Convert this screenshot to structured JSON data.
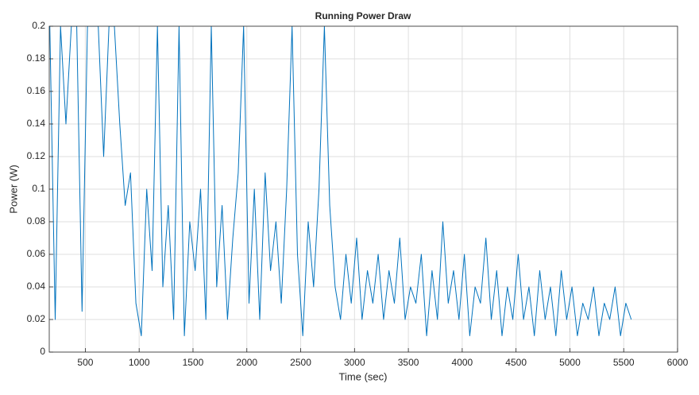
{
  "chart_data": {
    "type": "line",
    "title": "Running Power Draw",
    "x_label": "Time (sec)",
    "y_label": "Power (W)",
    "x": [
      170,
      220,
      270,
      320,
      370,
      420,
      470,
      520,
      570,
      620,
      670,
      720,
      770,
      820,
      870,
      920,
      970,
      1020,
      1070,
      1120,
      1170,
      1220,
      1270,
      1320,
      1370,
      1420,
      1470,
      1520,
      1570,
      1620,
      1670,
      1720,
      1770,
      1820,
      1870,
      1920,
      1970,
      2020,
      2070,
      2120,
      2170,
      2220,
      2270,
      2320,
      2370,
      2420,
      2470,
      2520,
      2570,
      2620,
      2670,
      2720,
      2770,
      2820,
      2870,
      2920,
      2970,
      3020,
      3070,
      3120,
      3170,
      3220,
      3270,
      3320,
      3370,
      3420,
      3470,
      3520,
      3570,
      3620,
      3670,
      3720,
      3770,
      3820,
      3870,
      3920,
      3970,
      4020,
      4070,
      4120,
      4170,
      4220,
      4270,
      4320,
      4370,
      4420,
      4470,
      4520,
      4570,
      4620,
      4670,
      4720,
      4770,
      4820,
      4870,
      4920,
      4970,
      5020,
      5070,
      5120,
      5170,
      5220,
      5270,
      5320,
      5370,
      5420,
      5470,
      5520,
      5570
    ],
    "values": [
      0.2,
      0.02,
      0.2,
      0.14,
      0.2,
      0.2,
      0.025,
      0.2,
      0.2,
      0.2,
      0.12,
      0.2,
      0.2,
      0.14,
      0.09,
      0.11,
      0.03,
      0.01,
      0.1,
      0.05,
      0.2,
      0.04,
      0.09,
      0.02,
      0.2,
      0.01,
      0.08,
      0.05,
      0.1,
      0.02,
      0.2,
      0.04,
      0.09,
      0.02,
      0.07,
      0.11,
      0.2,
      0.03,
      0.1,
      0.02,
      0.11,
      0.05,
      0.08,
      0.03,
      0.1,
      0.2,
      0.06,
      0.01,
      0.08,
      0.04,
      0.1,
      0.2,
      0.09,
      0.04,
      0.02,
      0.06,
      0.03,
      0.07,
      0.02,
      0.05,
      0.03,
      0.06,
      0.02,
      0.05,
      0.03,
      0.07,
      0.02,
      0.04,
      0.03,
      0.06,
      0.01,
      0.05,
      0.02,
      0.08,
      0.03,
      0.05,
      0.02,
      0.06,
      0.01,
      0.04,
      0.03,
      0.07,
      0.02,
      0.05,
      0.01,
      0.04,
      0.02,
      0.06,
      0.02,
      0.04,
      0.01,
      0.05,
      0.02,
      0.04,
      0.01,
      0.05,
      0.02,
      0.04,
      0.01,
      0.03,
      0.02,
      0.04,
      0.01,
      0.03,
      0.02,
      0.04,
      0.01,
      0.03,
      0.02
    ],
    "color": "#0072bd",
    "xlim": [
      165,
      6000
    ],
    "xticks": [
      500,
      1000,
      1500,
      2000,
      2500,
      3000,
      3500,
      4000,
      4500,
      5000,
      5500,
      6000
    ],
    "ylim": [
      0,
      0.2
    ],
    "yticks": [
      0,
      0.02,
      0.04,
      0.06,
      0.08,
      0.1,
      0.12,
      0.14,
      0.16,
      0.18,
      0.2
    ],
    "grid": true
  }
}
